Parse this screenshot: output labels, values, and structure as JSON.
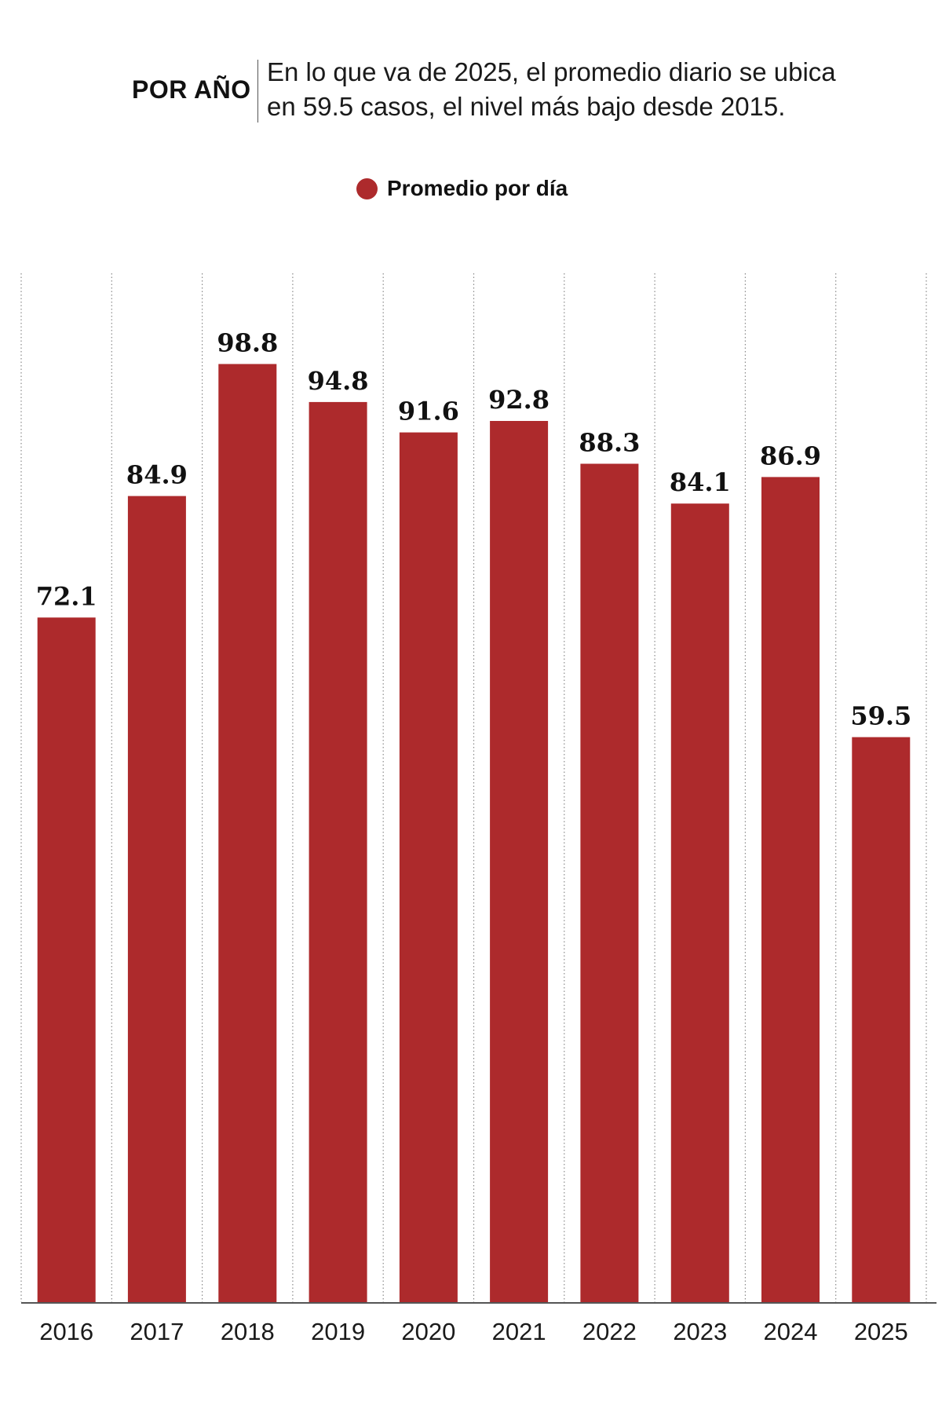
{
  "header": {
    "kicker": "POR AÑO",
    "subtitle_line1": "En lo que va de 2025, el promedio diario se ubica",
    "subtitle_line2": "en 59.5 casos, el nivel más bajo desde 2015."
  },
  "colors": {
    "bar": "#ad2a2c",
    "text": "#111111",
    "gridline": "#8a8a8a",
    "axis": "#555555"
  },
  "chart_data": {
    "type": "bar",
    "categories": [
      "2016",
      "2017",
      "2018",
      "2019",
      "2020",
      "2021",
      "2022",
      "2023",
      "2024",
      "2025"
    ],
    "series": [
      {
        "name": "Promedio por día",
        "values": [
          72.1,
          84.9,
          98.8,
          94.8,
          91.6,
          92.8,
          88.3,
          84.1,
          86.9,
          59.5
        ],
        "labels": [
          "72.1",
          "84.9",
          "98.8",
          "94.8",
          "91.6",
          "92.8",
          "88.3",
          "84.1",
          "86.9",
          "59.5"
        ]
      }
    ],
    "ylim": [
      0,
      100
    ],
    "grid": "vertical dotted separators",
    "legend_position": "top-center",
    "y_axis_shown": false
  }
}
